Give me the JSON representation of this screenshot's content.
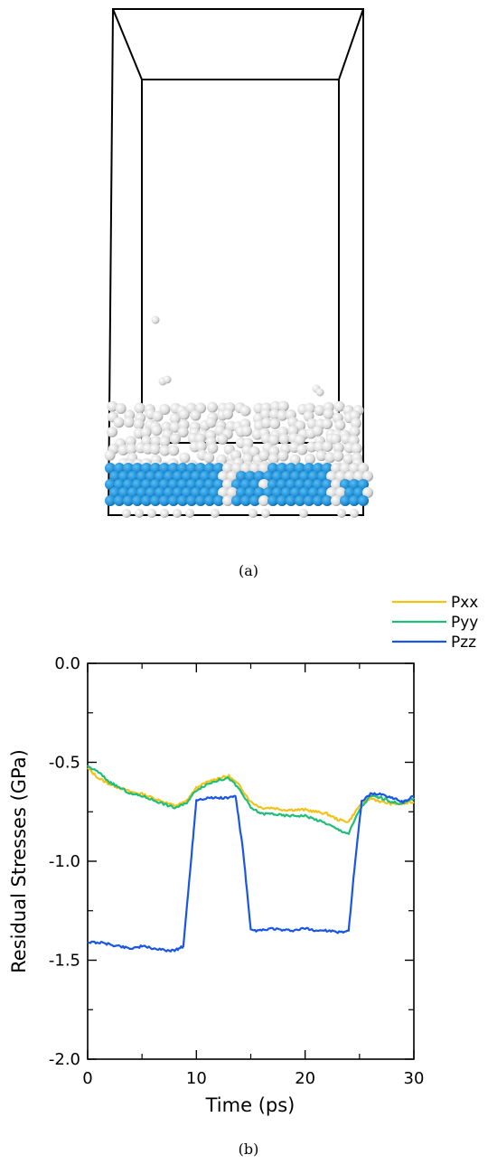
{
  "panels": {
    "a": {
      "caption": "(a)"
    },
    "b": {
      "caption": "(b)"
    }
  },
  "atoms_panel": {
    "colors": {
      "gray_atom": "#d9d9d9",
      "blue_atom": "#1f8fd6",
      "box_edge": "#000000"
    }
  },
  "chart_data": {
    "type": "line",
    "title": "",
    "xlabel": "Time (ps)",
    "ylabel": "Residual Stresses (GPa)",
    "xlim": [
      0,
      30
    ],
    "ylim": [
      -2.0,
      0.0
    ],
    "xticks": [
      0,
      10,
      20,
      30
    ],
    "yticks": [
      0.0,
      -0.5,
      -1.0,
      -1.5,
      -2.0
    ],
    "ytick_labels": [
      "0.0",
      "-0.5",
      "-1.0",
      "-1.5",
      "-2.0"
    ],
    "legend_position": "top-right-outside",
    "grid": false,
    "series": [
      {
        "name": "Pxx",
        "color": "#f2c21a",
        "x": [
          0,
          1,
          2,
          3,
          4,
          5,
          6,
          7,
          8,
          9,
          10,
          11,
          12,
          13,
          14,
          15,
          16,
          17,
          18,
          19,
          20,
          21,
          22,
          23,
          24,
          25,
          26,
          27,
          28,
          29,
          30
        ],
        "y": [
          -0.53,
          -0.58,
          -0.61,
          -0.63,
          -0.65,
          -0.66,
          -0.68,
          -0.7,
          -0.72,
          -0.7,
          -0.63,
          -0.6,
          -0.58,
          -0.57,
          -0.62,
          -0.7,
          -0.73,
          -0.73,
          -0.74,
          -0.74,
          -0.74,
          -0.75,
          -0.76,
          -0.79,
          -0.8,
          -0.72,
          -0.68,
          -0.7,
          -0.71,
          -0.71,
          -0.7
        ]
      },
      {
        "name": "Pyy",
        "color": "#1fbf7a",
        "x": [
          0,
          1,
          2,
          3,
          4,
          5,
          6,
          7,
          8,
          9,
          10,
          11,
          12,
          13,
          14,
          15,
          16,
          17,
          18,
          19,
          20,
          21,
          22,
          23,
          24,
          25,
          26,
          27,
          28,
          29,
          30
        ],
        "y": [
          -0.52,
          -0.55,
          -0.6,
          -0.63,
          -0.66,
          -0.67,
          -0.69,
          -0.71,
          -0.73,
          -0.71,
          -0.64,
          -0.61,
          -0.59,
          -0.58,
          -0.64,
          -0.73,
          -0.76,
          -0.76,
          -0.77,
          -0.77,
          -0.77,
          -0.79,
          -0.81,
          -0.84,
          -0.86,
          -0.74,
          -0.67,
          -0.68,
          -0.7,
          -0.71,
          -0.68
        ]
      },
      {
        "name": "Pzz",
        "color": "#1a56e6",
        "x": [
          0,
          1,
          2,
          3,
          4,
          5,
          6,
          7,
          8,
          8.8,
          9.5,
          10,
          11,
          12,
          13,
          13.6,
          14.3,
          15,
          16,
          17,
          18,
          19,
          20,
          21,
          22,
          23,
          24,
          24.6,
          25.2,
          26,
          27,
          28,
          29,
          30
        ],
        "y": [
          -1.41,
          -1.41,
          -1.42,
          -1.43,
          -1.44,
          -1.43,
          -1.44,
          -1.45,
          -1.45,
          -1.43,
          -1.0,
          -0.69,
          -0.68,
          -0.68,
          -0.68,
          -0.67,
          -0.95,
          -1.35,
          -1.35,
          -1.34,
          -1.35,
          -1.35,
          -1.34,
          -1.35,
          -1.35,
          -1.36,
          -1.35,
          -1.0,
          -0.7,
          -0.66,
          -0.66,
          -0.68,
          -0.7,
          -0.67
        ]
      }
    ]
  }
}
